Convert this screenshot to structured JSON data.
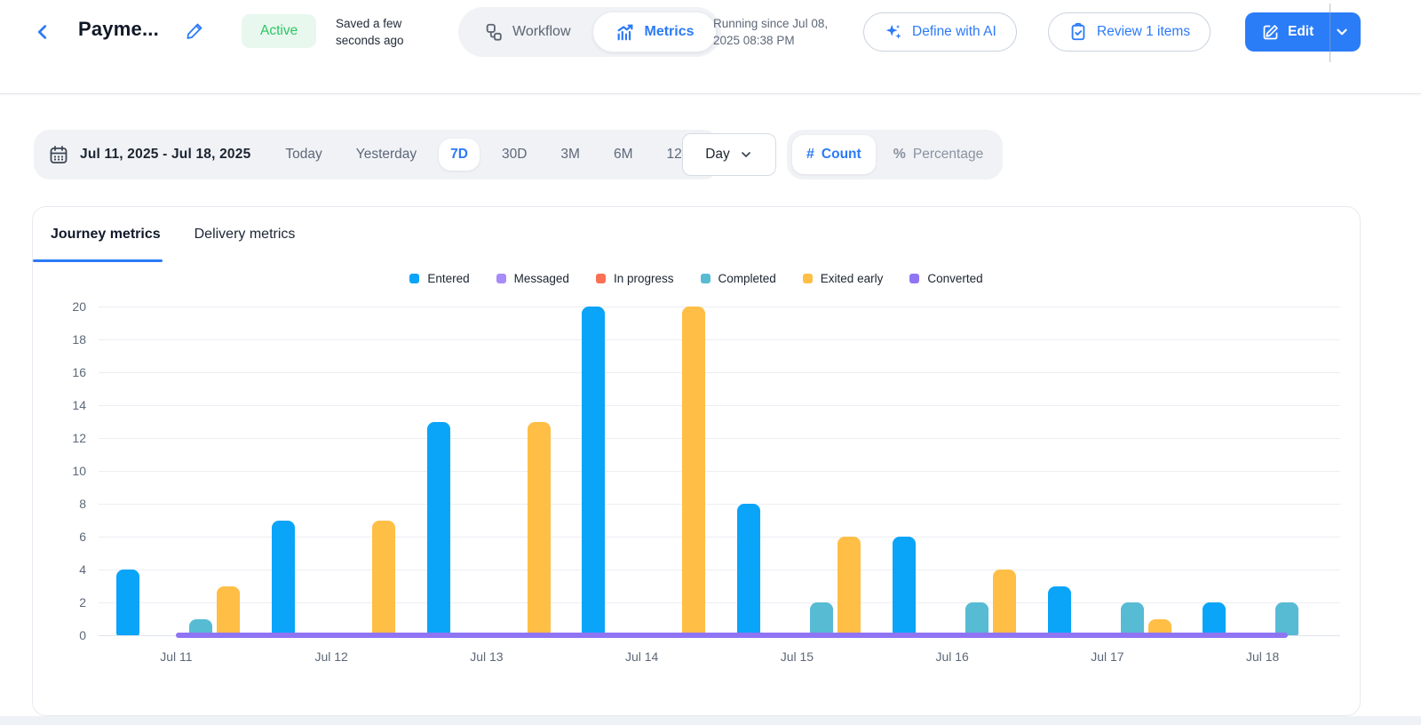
{
  "header": {
    "title": "Payme...",
    "status_badge": "Active",
    "saved_note": "Saved a few seconds ago",
    "view_toggle": {
      "workflow": "Workflow",
      "metrics": "Metrics"
    },
    "running_since": "Running since Jul 08, 2025 08:38 PM",
    "buttons": {
      "define_ai": "Define with AI",
      "review": "Review 1 items",
      "edit": "Edit"
    }
  },
  "filters": {
    "date_range": "Jul 11, 2025 - Jul 18, 2025",
    "presets": [
      "Today",
      "Yesterday",
      "7D",
      "30D",
      "3M",
      "6M",
      "12M"
    ],
    "selected_preset": "7D",
    "granularity": "Day",
    "mode": {
      "count_glyph": "#",
      "count": "Count",
      "percentage_glyph": "%",
      "percentage": "Percentage",
      "selected": "Count"
    }
  },
  "tabs": [
    {
      "label": "Journey metrics",
      "active": true
    },
    {
      "label": "Delivery metrics",
      "active": false
    }
  ],
  "chart_data": {
    "type": "bar",
    "title": "Journey metrics",
    "categories": [
      "Jul 11",
      "Jul 12",
      "Jul 13",
      "Jul 14",
      "Jul 15",
      "Jul 16",
      "Jul 17",
      "Jul 18"
    ],
    "series": [
      {
        "name": "Entered",
        "color": "#0aa4f9",
        "render": "bar",
        "values": [
          4,
          7,
          13,
          20,
          8,
          6,
          3,
          2
        ]
      },
      {
        "name": "Messaged",
        "color": "#a78bfa",
        "render": "bar",
        "values": [
          0,
          0,
          0,
          0,
          0,
          0,
          0,
          0
        ]
      },
      {
        "name": "In progress",
        "color": "#fa7053",
        "render": "bar",
        "values": [
          0,
          0,
          0,
          0,
          0,
          0,
          0,
          0
        ]
      },
      {
        "name": "Completed",
        "color": "#57bbd4",
        "render": "bar",
        "values": [
          1,
          0,
          0,
          0,
          2,
          2,
          2,
          2
        ]
      },
      {
        "name": "Exited early",
        "color": "#ffbe45",
        "render": "bar",
        "values": [
          3,
          7,
          13,
          20,
          6,
          4,
          1,
          0
        ]
      },
      {
        "name": "Converted",
        "color": "#8f75f4",
        "render": "line",
        "values": [
          0,
          0,
          0,
          0,
          0,
          0,
          0,
          0
        ]
      }
    ],
    "ylim": [
      0,
      20
    ],
    "ytick_step": 2,
    "grid": true,
    "legend_position": "top",
    "xlabel": "",
    "ylabel": ""
  }
}
